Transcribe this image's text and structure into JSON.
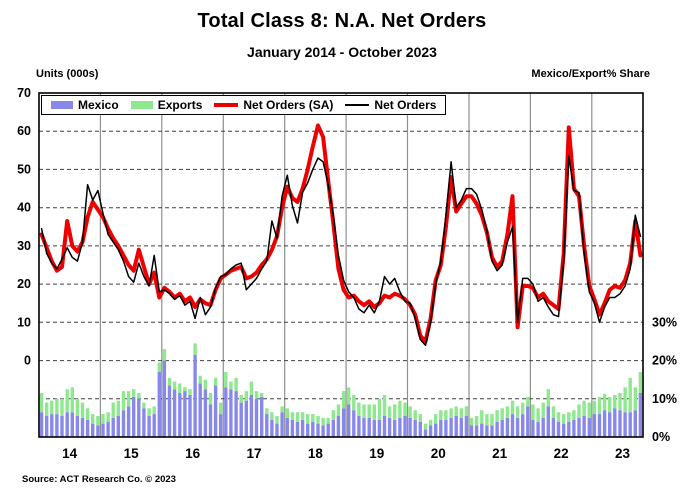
{
  "title": "Total Class 8: N.A. Net Orders",
  "subtitle": "January 2014 - October 2023",
  "left_axis_header": "Units (000s)",
  "right_axis_header": "Mexico/Export% Share",
  "source": "Source: ACT Research Co. © 2023",
  "colors": {
    "mexico_bar": "#8888ea",
    "exports_bar": "#8fe88f",
    "net_orders_sa_line": "#ee0000",
    "net_orders_line": "#000000",
    "year_gridline": "#909090",
    "dashed_gridline": "#404040",
    "plot_border": "#000000"
  },
  "chart_data": {
    "type": "combo",
    "title": "Total Class 8: N.A. Net Orders",
    "subtitle": "January 2014 - October 2023",
    "x_axis": {
      "start": "2014-01",
      "end": "2023-10",
      "months": 118,
      "year_labels": [
        "14",
        "15",
        "16",
        "17",
        "18",
        "19",
        "20",
        "21",
        "22",
        "23"
      ]
    },
    "left_axis": {
      "label": "Units (000s)",
      "ticks": [
        70,
        60,
        50,
        40,
        30,
        20,
        10,
        0
      ],
      "range": [
        -20,
        70
      ],
      "gridlines": [
        60,
        50,
        40,
        30,
        20,
        10,
        0,
        -10
      ],
      "grid": "dashed"
    },
    "right_axis": {
      "label": "Mexico/Export% Share",
      "ticks": [
        {
          "label": "30%",
          "pct": 30
        },
        {
          "label": "20%",
          "pct": 20
        },
        {
          "label": "10%",
          "pct": 10
        },
        {
          "label": "0%",
          "pct": 0
        }
      ],
      "pct_range": [
        0,
        90
      ],
      "note": "0% sits at plot bottom; 10% share = 10 units of left axis"
    },
    "legend_position": "top-left-inside",
    "series": [
      {
        "name": "Mexico",
        "type": "bar",
        "axis": "right",
        "unit": "% share",
        "color": "#8888ea",
        "values": [
          6.5,
          5.5,
          6,
          6,
          5.5,
          6.5,
          6.5,
          5.5,
          5,
          4.5,
          3.5,
          3,
          3.5,
          4,
          5,
          5.5,
          7,
          8,
          10.5,
          10,
          7.5,
          5.5,
          6,
          17,
          20,
          13.5,
          12.5,
          11.5,
          12,
          11,
          21.5,
          14,
          12.5,
          8.5,
          13.5,
          6,
          13,
          12.5,
          12,
          9,
          9.5,
          11,
          10,
          10.5,
          6,
          4.5,
          3.5,
          6.5,
          5,
          4.5,
          4,
          4.5,
          3.5,
          4,
          3.5,
          3,
          3.5,
          4.5,
          5.5,
          7.5,
          8.5,
          7,
          5.5,
          5,
          5,
          4.5,
          4.5,
          5.5,
          5,
          4.5,
          5,
          5.5,
          5,
          4.5,
          4,
          2,
          3,
          3.5,
          4.5,
          4.5,
          5,
          5.5,
          5,
          5.5,
          3,
          3,
          3.5,
          3,
          3,
          4,
          4.5,
          5,
          6,
          5,
          6,
          8,
          4.5,
          4,
          5,
          8,
          5,
          4,
          3.5,
          4,
          4.5,
          5,
          5.5,
          5,
          6,
          6,
          7,
          6.5,
          7.5,
          7,
          6.5,
          6.5,
          7,
          11.5
        ]
      },
      {
        "name": "Exports",
        "type": "bar",
        "axis": "right",
        "unit": "% share",
        "stack": "Mexico",
        "color": "#8fe88f",
        "values": [
          5,
          3.5,
          3.5,
          4,
          4.5,
          6,
          6.5,
          4.5,
          4,
          3,
          2.5,
          2.5,
          2.5,
          2.5,
          4,
          4,
          5,
          4,
          2,
          1.5,
          1.5,
          2,
          2,
          2.5,
          3,
          2,
          2,
          2.5,
          1,
          1.5,
          3,
          2,
          2.5,
          3,
          2,
          3,
          4,
          2,
          3.5,
          2,
          2.5,
          3.5,
          2,
          1,
          1.5,
          2,
          2,
          1.5,
          2.5,
          2,
          2.5,
          2,
          2.5,
          2,
          2,
          2,
          1.5,
          2.5,
          3,
          4.5,
          4.5,
          4,
          3.5,
          3.5,
          3.5,
          4,
          5.5,
          5.5,
          3,
          4,
          4.5,
          3.5,
          3,
          2.5,
          2,
          1.5,
          1.5,
          2.5,
          2.5,
          2.5,
          2.5,
          2.5,
          2.5,
          2.5,
          2,
          2.5,
          3.5,
          3,
          3,
          3,
          3,
          3,
          3.5,
          3,
          3,
          2.5,
          4,
          3.5,
          4,
          4.5,
          3,
          2.5,
          2.5,
          2.5,
          2.5,
          3.5,
          4,
          4,
          3.5,
          4.5,
          4.3,
          4,
          3.5,
          4.5,
          6.5,
          9,
          6,
          5.5
        ]
      },
      {
        "name": "Net Orders (SA)",
        "type": "line",
        "axis": "left",
        "unit": "thousands of units",
        "color": "#ee0000",
        "stroke_width": 4,
        "values": [
          33,
          29.5,
          26,
          23.5,
          24.5,
          36.5,
          30,
          28.5,
          31,
          37.5,
          41.5,
          39.5,
          37.5,
          34.5,
          32,
          30,
          27.5,
          25,
          23.5,
          29,
          24.5,
          20,
          23,
          16.5,
          19,
          18,
          16.5,
          17.5,
          15.5,
          16.5,
          14,
          16,
          15,
          14.5,
          18.5,
          21.5,
          22.5,
          23.5,
          24,
          24.5,
          21.5,
          22,
          23,
          25,
          26.5,
          29,
          32.5,
          40,
          45.5,
          42.5,
          41.5,
          45,
          50,
          56,
          61.5,
          58.5,
          47,
          36,
          24,
          18.5,
          16.5,
          17,
          15.5,
          14.5,
          15.5,
          14,
          15,
          17,
          16.5,
          17.5,
          17,
          16,
          14.5,
          12,
          6.5,
          5,
          11,
          21,
          25,
          35,
          48,
          39,
          41,
          43,
          43,
          41,
          38,
          33.5,
          27,
          24.5,
          26,
          33,
          43,
          8.7,
          19.5,
          19.5,
          19,
          16.5,
          17.5,
          15.5,
          14.5,
          13.5,
          28,
          61,
          45,
          43,
          30,
          19.5,
          16,
          12,
          15,
          18.5,
          19.5,
          19,
          21,
          25.5,
          36.5,
          27.5
        ]
      },
      {
        "name": "Net Orders",
        "type": "line",
        "axis": "left",
        "unit": "thousands of units",
        "color": "#000000",
        "stroke_width": 1.5,
        "values": [
          34.5,
          28,
          25.5,
          24,
          26.5,
          29.5,
          27,
          26,
          31,
          46,
          42,
          44.5,
          38.5,
          33,
          31,
          29,
          26,
          22,
          20.5,
          25.5,
          22,
          19.5,
          27.5,
          18,
          18.5,
          17.5,
          16,
          17,
          14.5,
          15.5,
          11,
          16.5,
          12,
          14,
          19,
          22,
          22.5,
          24,
          25,
          25.5,
          18.5,
          20,
          21.5,
          24,
          26,
          36.5,
          32,
          43,
          48.5,
          40.5,
          36,
          44,
          46.5,
          50,
          53,
          52,
          46,
          38,
          27.5,
          21,
          18,
          16.5,
          13.5,
          12.5,
          14.5,
          12.5,
          15.5,
          22,
          20,
          21.5,
          18,
          15.5,
          15,
          11,
          5.5,
          4,
          10,
          20,
          26,
          38,
          52,
          40,
          42,
          45,
          45,
          43.5,
          39.5,
          34,
          26,
          23.5,
          25,
          31,
          35,
          10,
          21.5,
          21.5,
          20,
          15.5,
          16.5,
          14,
          12,
          11.5,
          26,
          53.5,
          44.5,
          44,
          28,
          18,
          15,
          10,
          14,
          16.5,
          16.5,
          17.5,
          19.5,
          24,
          38,
          32.5
        ]
      }
    ],
    "source": "Source: ACT Research Co. © 2023"
  }
}
